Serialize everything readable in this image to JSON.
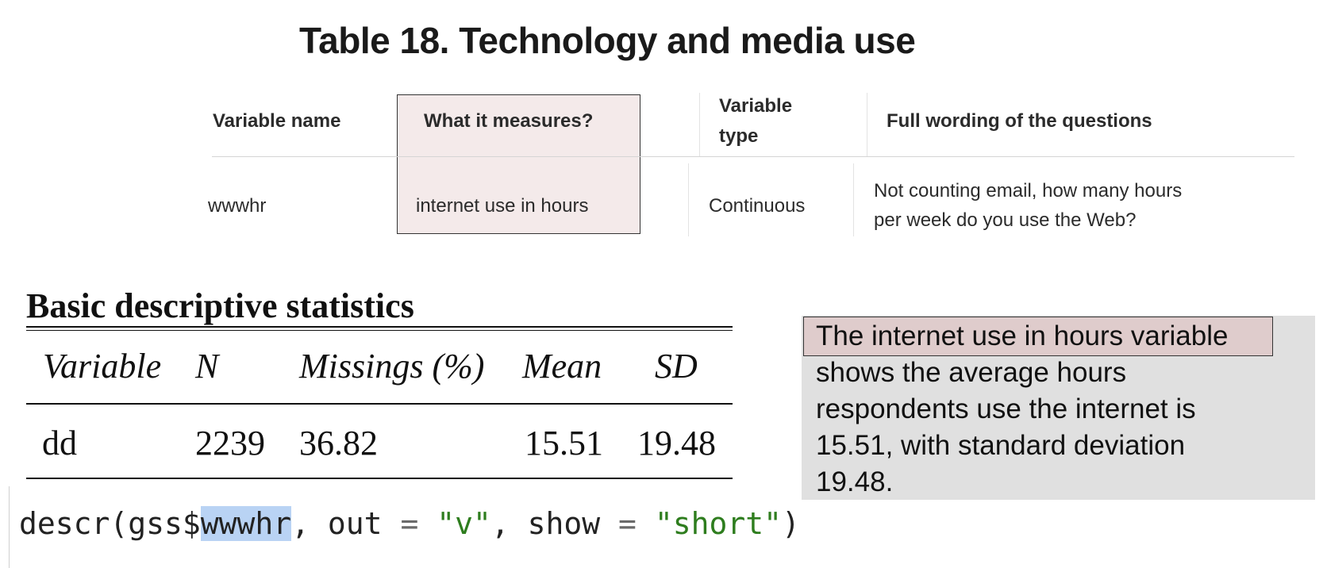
{
  "table_title": "Table 18. Technology and media use",
  "variable_table": {
    "headers": {
      "name": "Variable name",
      "measures": "What it measures?",
      "type_line1": "Variable",
      "type_line2": "type",
      "wording": "Full wording of the questions"
    },
    "row": {
      "name": "wwwhr",
      "measures": "internet use in hours",
      "type": "Continuous",
      "wording_line1": "Not counting email, how many hours",
      "wording_line2": "per week do you use the Web?"
    }
  },
  "stats": {
    "title": "Basic descriptive statistics",
    "headers": {
      "variable": "Variable",
      "n": "N",
      "missings": "Missings (%)",
      "mean": "Mean",
      "sd": "SD"
    },
    "row": {
      "variable": "dd",
      "n": "2239",
      "missings": "36.82",
      "mean": "15.51",
      "sd": "19.48"
    }
  },
  "code": {
    "fn": "descr(gss$",
    "selected": "wwwhr",
    "arg1": ", out ",
    "eq1": "=",
    "space1": " ",
    "str1": "\"v\"",
    "arg2": ", show ",
    "eq2": "=",
    "space2": " ",
    "str2": "\"short\"",
    "close": ")"
  },
  "note": {
    "highlight": "The internet use in hours variable",
    "line2": "shows the average hours",
    "line3": "respondents use the internet is",
    "line4": "15.51, with standard deviation",
    "line5": "19.48."
  }
}
